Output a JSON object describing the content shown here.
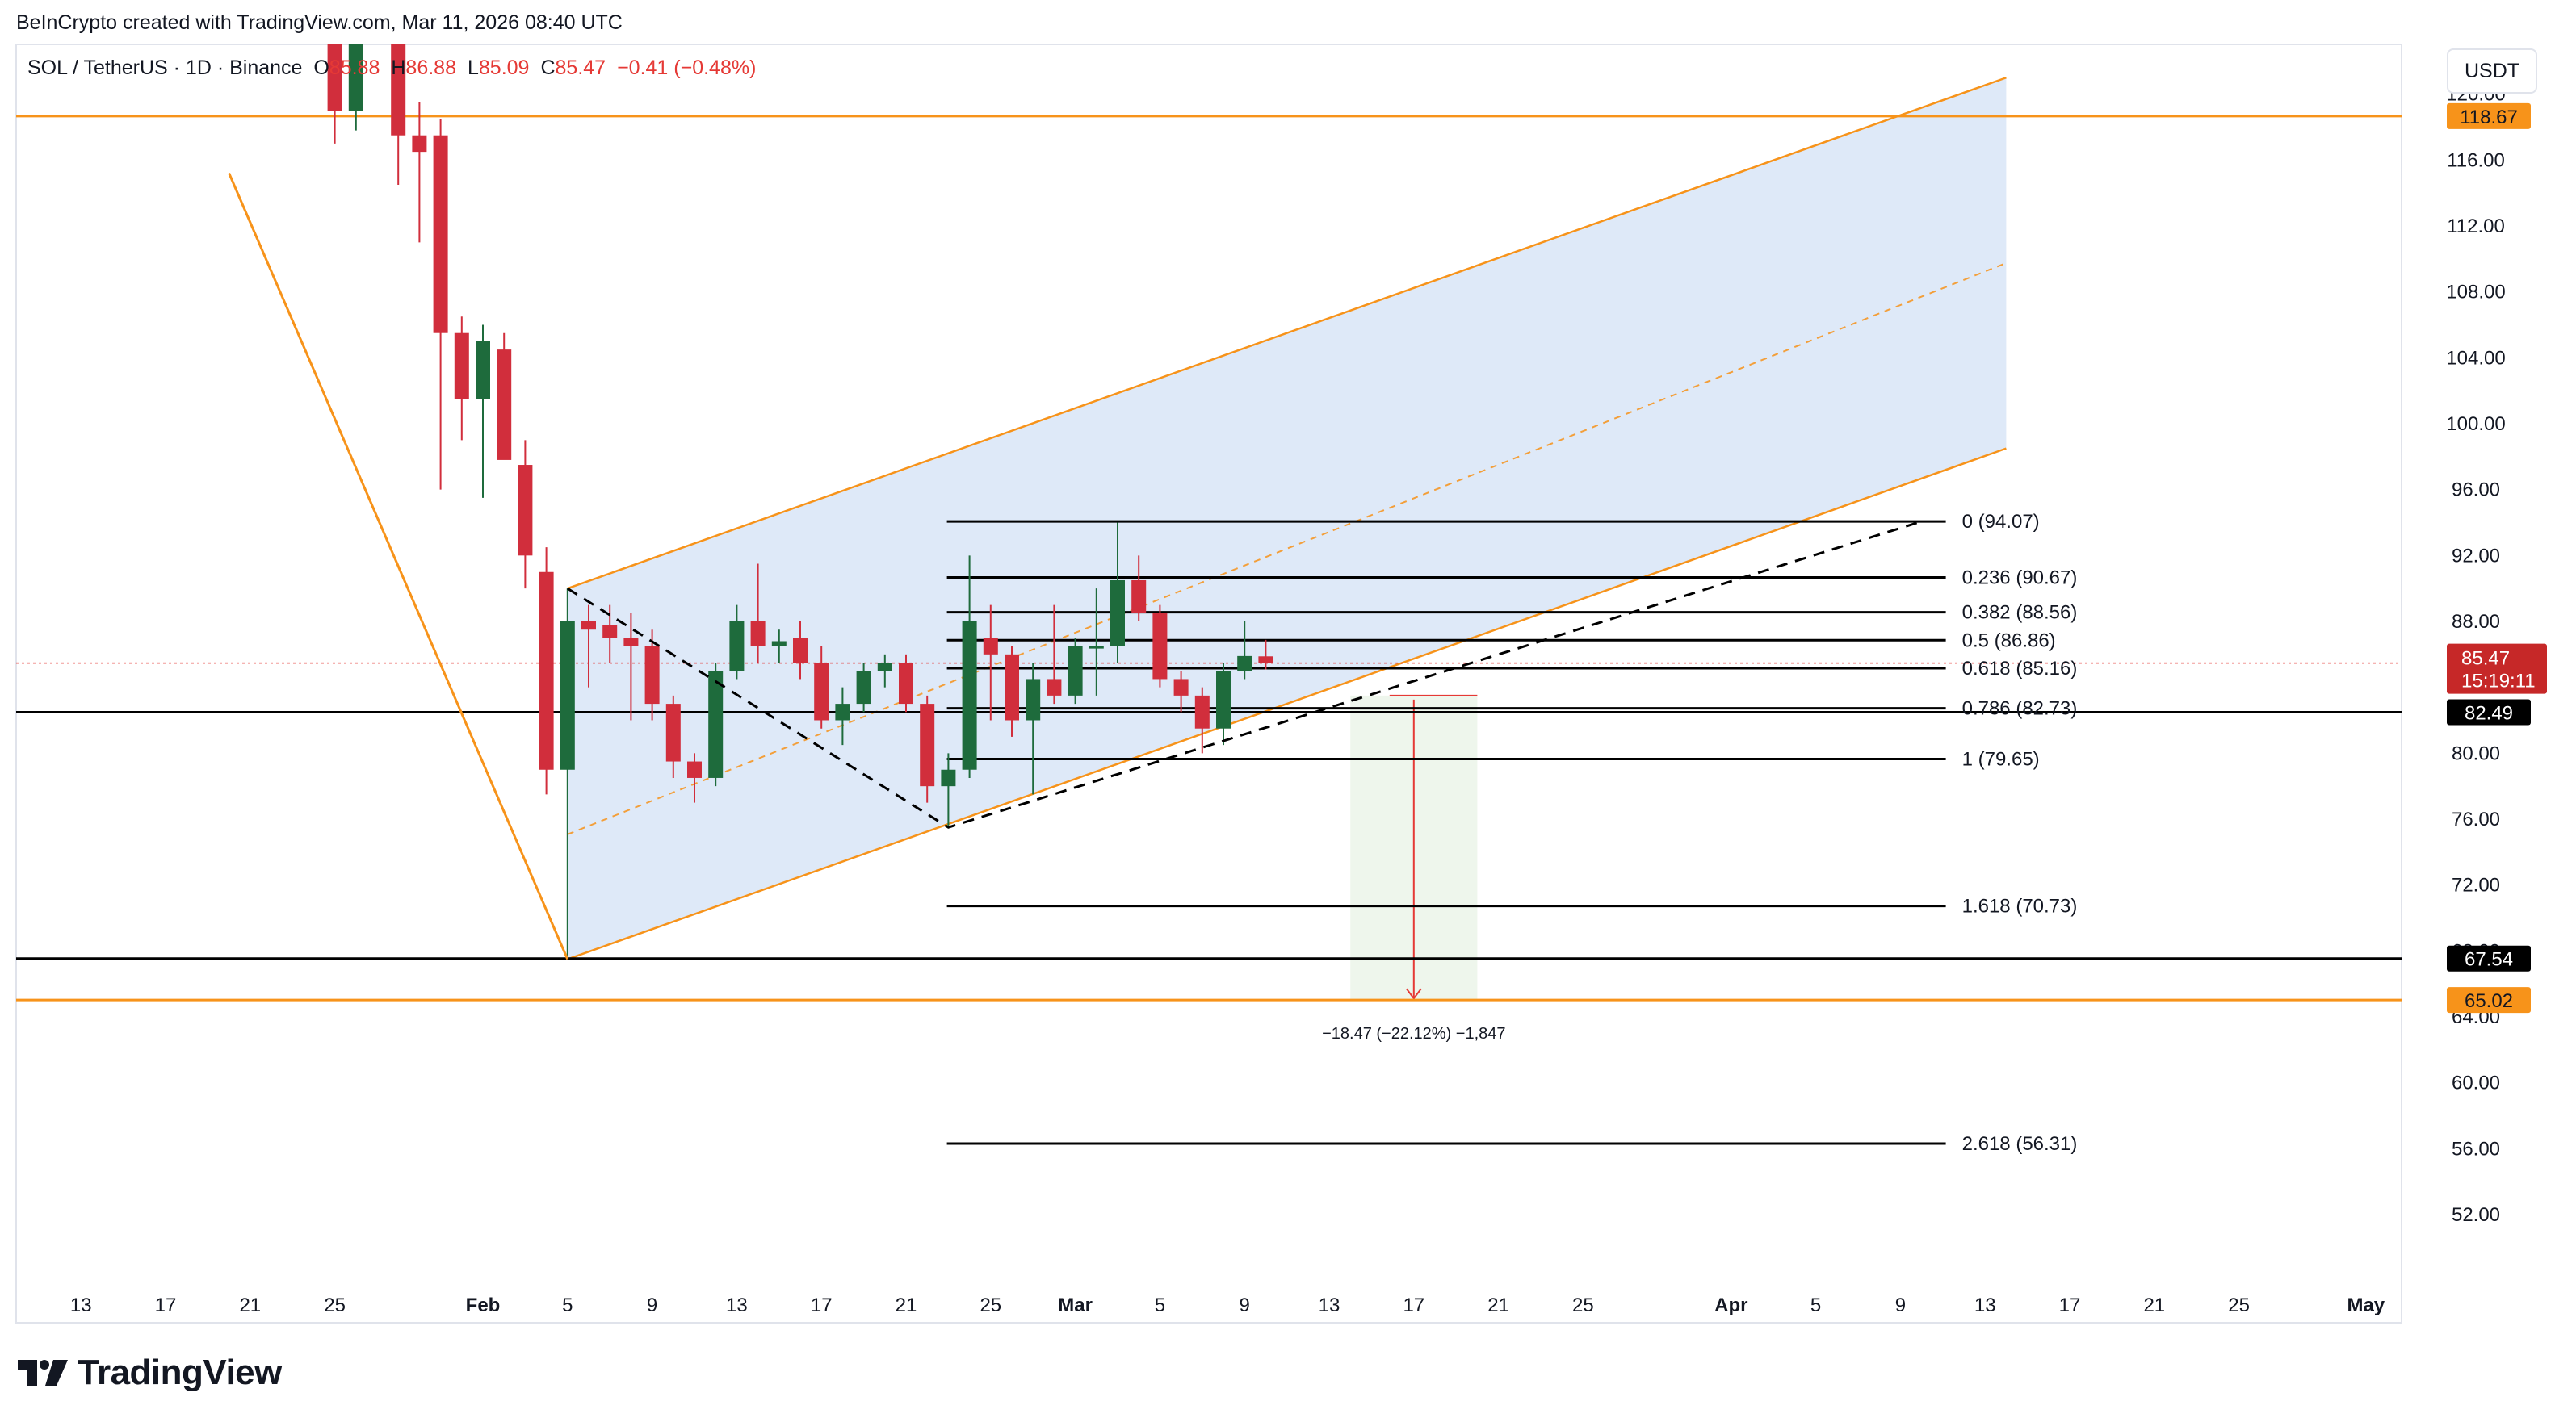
{
  "attribution": "BeInCrypto created with TradingView.com, Mar 11, 2026 08:40 UTC",
  "legend": {
    "symbol": "SOL / TetherUS · 1D · Binance",
    "open_label": "O",
    "open_value": "85.88",
    "high_label": "H",
    "high_value": "86.88",
    "low_label": "L",
    "low_value": "85.09",
    "close_label": "C",
    "close_value": "85.47",
    "change": "−0.41 (−0.48%)"
  },
  "currency": "USDT",
  "brand": "TradingView",
  "colors": {
    "up": "#1e6b3c",
    "down": "#d12e3c",
    "orange": "#f7931a",
    "channel_fill": "#dce8f8",
    "target_fill": "#eef6ec",
    "black_line": "#000000"
  },
  "chart_data": {
    "type": "candlestick",
    "y_axis": {
      "min": 48,
      "max": 122,
      "ticks": [
        52,
        56,
        60,
        64,
        68,
        72,
        76,
        80,
        84,
        88,
        92,
        96,
        100,
        104,
        108,
        112,
        116,
        120
      ],
      "tick_labels": [
        "52.00",
        "56.00",
        "60.00",
        "64.00",
        "68.00",
        "72.00",
        "76.00",
        "80.00",
        "84.00",
        "88.00",
        "92.00",
        "96.00",
        "100.00",
        "104.00",
        "108.00",
        "112.00",
        "116.00",
        "120.00"
      ]
    },
    "x_axis": {
      "labels": [
        {
          "date": "2026-01-13",
          "text": "13"
        },
        {
          "date": "2026-01-17",
          "text": "17"
        },
        {
          "date": "2026-01-21",
          "text": "21"
        },
        {
          "date": "2026-01-25",
          "text": "25"
        },
        {
          "date": "2026-02-01",
          "text": "Feb"
        },
        {
          "date": "2026-02-05",
          "text": "5"
        },
        {
          "date": "2026-02-09",
          "text": "9"
        },
        {
          "date": "2026-02-13",
          "text": "13"
        },
        {
          "date": "2026-02-17",
          "text": "17"
        },
        {
          "date": "2026-02-21",
          "text": "21"
        },
        {
          "date": "2026-02-25",
          "text": "25"
        },
        {
          "date": "2026-03-01",
          "text": "Mar"
        },
        {
          "date": "2026-03-05",
          "text": "5"
        },
        {
          "date": "2026-03-09",
          "text": "9"
        },
        {
          "date": "2026-03-13",
          "text": "13"
        },
        {
          "date": "2026-03-17",
          "text": "17"
        },
        {
          "date": "2026-03-21",
          "text": "21"
        },
        {
          "date": "2026-03-25",
          "text": "25"
        },
        {
          "date": "2026-04-01",
          "text": "Apr"
        },
        {
          "date": "2026-04-05",
          "text": "5"
        },
        {
          "date": "2026-04-09",
          "text": "9"
        },
        {
          "date": "2026-04-13",
          "text": "13"
        },
        {
          "date": "2026-04-17",
          "text": "17"
        },
        {
          "date": "2026-04-21",
          "text": "21"
        },
        {
          "date": "2026-04-25",
          "text": "25"
        },
        {
          "date": "2026-05-01",
          "text": "May"
        }
      ]
    },
    "candles": [
      {
        "date": "2026-01-25",
        "o": 127.0,
        "h": 129.0,
        "l": 117.0,
        "c": 119.0
      },
      {
        "date": "2026-01-26",
        "o": 119.0,
        "h": 128.0,
        "l": 117.8,
        "c": 126.0
      },
      {
        "date": "2026-01-28",
        "o": 127.0,
        "h": 128.0,
        "l": 114.5,
        "c": 117.5
      },
      {
        "date": "2026-01-29",
        "o": 117.5,
        "h": 119.5,
        "l": 111.0,
        "c": 116.5
      },
      {
        "date": "2026-01-30",
        "o": 117.5,
        "h": 118.5,
        "l": 96.0,
        "c": 105.5
      },
      {
        "date": "2026-01-31",
        "o": 105.5,
        "h": 106.5,
        "l": 99.0,
        "c": 101.5
      },
      {
        "date": "2026-02-01",
        "o": 101.5,
        "h": 106.0,
        "l": 95.5,
        "c": 105.0
      },
      {
        "date": "2026-02-02",
        "o": 104.5,
        "h": 105.5,
        "l": 98.0,
        "c": 97.8
      },
      {
        "date": "2026-02-03",
        "o": 97.5,
        "h": 99.0,
        "l": 90.0,
        "c": 92.0
      },
      {
        "date": "2026-02-04",
        "o": 91.0,
        "h": 92.5,
        "l": 77.5,
        "c": 79.0
      },
      {
        "date": "2026-02-05",
        "o": 79.0,
        "h": 90.0,
        "l": 67.5,
        "c": 88.0
      },
      {
        "date": "2026-02-06",
        "o": 88.0,
        "h": 89.0,
        "l": 84.0,
        "c": 87.5
      },
      {
        "date": "2026-02-07",
        "o": 87.8,
        "h": 89.0,
        "l": 85.5,
        "c": 87.0
      },
      {
        "date": "2026-02-08",
        "o": 87.0,
        "h": 88.5,
        "l": 82.0,
        "c": 86.5
      },
      {
        "date": "2026-02-09",
        "o": 86.5,
        "h": 87.5,
        "l": 82.0,
        "c": 83.0
      },
      {
        "date": "2026-02-10",
        "o": 83.0,
        "h": 83.5,
        "l": 78.5,
        "c": 79.5
      },
      {
        "date": "2026-02-11",
        "o": 79.5,
        "h": 80.0,
        "l": 77.0,
        "c": 78.5
      },
      {
        "date": "2026-02-12",
        "o": 78.5,
        "h": 85.5,
        "l": 78.0,
        "c": 85.0
      },
      {
        "date": "2026-02-13",
        "o": 85.0,
        "h": 89.0,
        "l": 84.5,
        "c": 88.0
      },
      {
        "date": "2026-02-14",
        "o": 88.0,
        "h": 91.5,
        "l": 85.5,
        "c": 86.5
      },
      {
        "date": "2026-02-15",
        "o": 86.5,
        "h": 87.5,
        "l": 85.5,
        "c": 86.8
      },
      {
        "date": "2026-02-16",
        "o": 87.0,
        "h": 88.0,
        "l": 84.5,
        "c": 85.5
      },
      {
        "date": "2026-02-17",
        "o": 85.5,
        "h": 86.5,
        "l": 81.5,
        "c": 82.0
      },
      {
        "date": "2026-02-18",
        "o": 82.0,
        "h": 84.0,
        "l": 80.5,
        "c": 83.0
      },
      {
        "date": "2026-02-19",
        "o": 83.0,
        "h": 85.5,
        "l": 82.5,
        "c": 85.0
      },
      {
        "date": "2026-02-20",
        "o": 85.0,
        "h": 86.0,
        "l": 84.0,
        "c": 85.5
      },
      {
        "date": "2026-02-21",
        "o": 85.5,
        "h": 86.0,
        "l": 82.5,
        "c": 83.0
      },
      {
        "date": "2026-02-22",
        "o": 83.0,
        "h": 83.5,
        "l": 77.0,
        "c": 78.0
      },
      {
        "date": "2026-02-23",
        "o": 78.0,
        "h": 80.0,
        "l": 75.5,
        "c": 79.0
      },
      {
        "date": "2026-02-24",
        "o": 79.0,
        "h": 92.0,
        "l": 78.5,
        "c": 88.0
      },
      {
        "date": "2026-02-25",
        "o": 87.0,
        "h": 89.0,
        "l": 82.0,
        "c": 86.0
      },
      {
        "date": "2026-02-26",
        "o": 86.0,
        "h": 86.5,
        "l": 81.0,
        "c": 82.0
      },
      {
        "date": "2026-02-27",
        "o": 82.0,
        "h": 85.5,
        "l": 77.5,
        "c": 84.5
      },
      {
        "date": "2026-02-28",
        "o": 84.5,
        "h": 89.0,
        "l": 83.0,
        "c": 83.5
      },
      {
        "date": "2026-03-01",
        "o": 83.5,
        "h": 87.0,
        "l": 83.0,
        "c": 86.5
      },
      {
        "date": "2026-03-02",
        "o": 86.5,
        "h": 90.0,
        "l": 83.5,
        "c": 86.5
      },
      {
        "date": "2026-03-03",
        "o": 86.5,
        "h": 94.0,
        "l": 85.5,
        "c": 90.5
      },
      {
        "date": "2026-03-04",
        "o": 90.5,
        "h": 92.0,
        "l": 88.0,
        "c": 88.5
      },
      {
        "date": "2026-03-05",
        "o": 88.5,
        "h": 89.0,
        "l": 84.0,
        "c": 84.5
      },
      {
        "date": "2026-03-06",
        "o": 84.5,
        "h": 85.0,
        "l": 82.5,
        "c": 83.5
      },
      {
        "date": "2026-03-07",
        "o": 83.5,
        "h": 84.0,
        "l": 80.0,
        "c": 81.5
      },
      {
        "date": "2026-03-08",
        "o": 81.5,
        "h": 85.5,
        "l": 80.5,
        "c": 85.0
      },
      {
        "date": "2026-03-09",
        "o": 85.0,
        "h": 88.0,
        "l": 84.5,
        "c": 85.9
      },
      {
        "date": "2026-03-10",
        "o": 85.88,
        "h": 86.88,
        "l": 85.09,
        "c": 85.47
      }
    ],
    "fib_levels": [
      {
        "ratio": "0",
        "value": 94.07,
        "label": "0 (94.07)"
      },
      {
        "ratio": "0.236",
        "value": 90.67,
        "label": "0.236 (90.67)"
      },
      {
        "ratio": "0.382",
        "value": 88.56,
        "label": "0.382 (88.56)"
      },
      {
        "ratio": "0.5",
        "value": 86.86,
        "label": "0.5 (86.86)"
      },
      {
        "ratio": "0.618",
        "value": 85.16,
        "label": "0.618 (85.16)"
      },
      {
        "ratio": "0.786",
        "value": 82.73,
        "label": "0.786 (82.73)"
      },
      {
        "ratio": "1",
        "value": 79.65,
        "label": "1 (79.65)"
      },
      {
        "ratio": "1.618",
        "value": 70.73,
        "label": "1.618 (70.73)"
      },
      {
        "ratio": "2.618",
        "value": 56.31,
        "label": "2.618 (56.31)"
      }
    ],
    "horizontal_levels": [
      {
        "value": 118.67,
        "label": "118.67",
        "color": "orange"
      },
      {
        "value": 82.49,
        "label": "82.49",
        "color": "black"
      },
      {
        "value": 67.54,
        "label": "67.54",
        "color": "black"
      },
      {
        "value": 65.02,
        "label": "65.02",
        "color": "orange"
      }
    ],
    "price_tag": {
      "value": 85.47,
      "label": "85.47",
      "countdown": "15:19:11"
    },
    "channel": {
      "lower_start": {
        "date": "2026-02-05",
        "value": 67.5
      },
      "lower_end": {
        "date": "2026-04-14",
        "value": 98.5
      },
      "upper_start": {
        "date": "2026-02-05",
        "value": 90.0
      },
      "upper_end": {
        "date": "2026-04-14",
        "value": 121.0
      }
    },
    "drop_leg": {
      "start": {
        "date": "2026-01-20",
        "value": 125.0
      },
      "end": {
        "date": "2026-02-05",
        "value": 67.5
      }
    },
    "zigzag": [
      {
        "date": "2026-02-05",
        "value": 90.0
      },
      {
        "date": "2026-02-23",
        "value": 75.5
      },
      {
        "date": "2026-04-10",
        "value": 94.07
      }
    ],
    "measure": {
      "date_start": "2026-03-14",
      "date_end": "2026-03-20",
      "from": 83.5,
      "to": 65.02,
      "arrow_date": "2026-03-17",
      "label": "−18.47 (−22.12%) −1,847"
    }
  }
}
